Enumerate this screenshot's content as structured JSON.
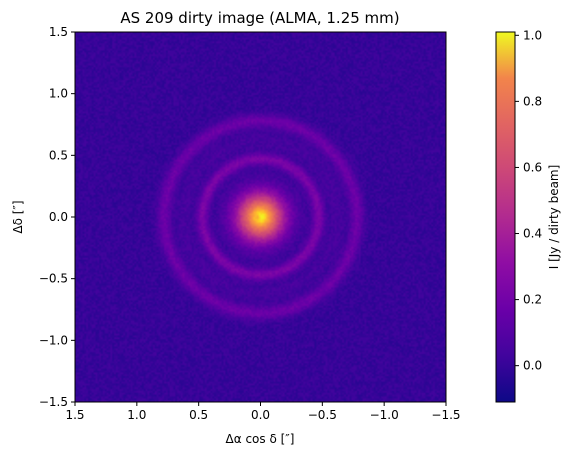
{
  "chart_data": {
    "type": "heatmap",
    "title": "AS 209 dirty image (ALMA, 1.25 mm)",
    "xlabel": "Δα cos δ [″]",
    "ylabel": "Δδ [″]",
    "xlim": [
      1.5,
      -1.5
    ],
    "ylim": [
      -1.5,
      1.5
    ],
    "xticks": [
      1.5,
      1.0,
      0.5,
      0.0,
      -0.5,
      -1.0,
      -1.5
    ],
    "xtick_labels": [
      "1.5",
      "1.0",
      "0.5",
      "0.0",
      "−0.5",
      "−1.0",
      "−1.5"
    ],
    "yticks": [
      1.5,
      1.0,
      0.5,
      0.0,
      -0.5,
      -1.0,
      -1.5
    ],
    "ytick_labels": [
      "1.5",
      "1.0",
      "0.5",
      "0.0",
      "−0.5",
      "−1.0",
      "−1.5"
    ],
    "colormap": "plasma",
    "colorbar": {
      "label": "I [Jy / dirty beam]",
      "range": [
        -0.11,
        1.01
      ],
      "ticks": [
        0.0,
        0.2,
        0.4,
        0.6,
        0.8,
        1.0
      ],
      "tick_labels": [
        "0.0",
        "0.2",
        "0.4",
        "0.6",
        "0.8",
        "1.0"
      ]
    },
    "image_features": {
      "background_level": -0.02,
      "central_core": {
        "center": [
          0.0,
          0.0
        ],
        "peak": 1.0,
        "radius": 0.25
      },
      "inner_ring": {
        "radius": 0.47,
        "level": 0.18
      },
      "outer_ring": {
        "radius": 0.78,
        "level": 0.14
      }
    }
  }
}
